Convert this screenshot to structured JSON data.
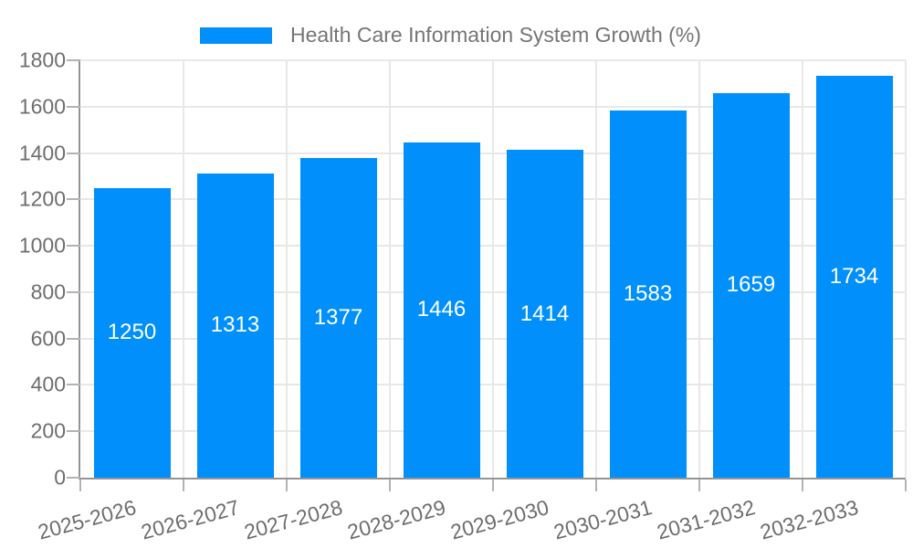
{
  "legend": {
    "label": "Health Care Information System Growth (%)"
  },
  "chart_data": {
    "type": "bar",
    "title": "Health Care Information System Growth (%)",
    "categories": [
      "2025-2026",
      "2026-2027",
      "2027-2028",
      "2028-2029",
      "2029-2030",
      "2030-2031",
      "2031-2032",
      "2032-2033"
    ],
    "values": [
      1250,
      1313,
      1377,
      1446,
      1414,
      1583,
      1659,
      1734
    ],
    "bar_labels": [
      1250,
      1313,
      1377,
      1446,
      1414,
      1583,
      1659,
      1734
    ],
    "bar_label_position": "center",
    "ylim": [
      0,
      1800
    ],
    "yticks": [
      0,
      200,
      400,
      600,
      800,
      1000,
      1200,
      1400,
      1600,
      1800
    ],
    "xlabel": "",
    "ylabel": "",
    "grid": true,
    "legend_position": "top",
    "colors": {
      "bar": "#008FFB",
      "bar_value_text": "#ffffff",
      "axis_text": "#6e6e6e",
      "title_text": "#757575",
      "gridline": "#e8e8e8",
      "axis_line": "#949494",
      "tick": "#b3b3b3"
    }
  }
}
